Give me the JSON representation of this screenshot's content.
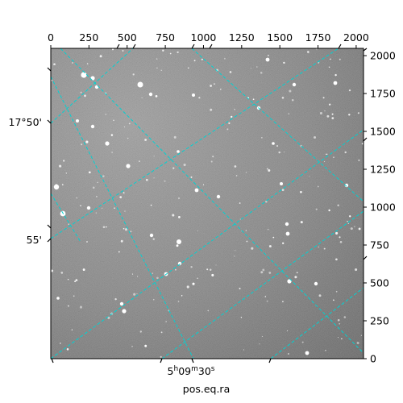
{
  "chart_data": {
    "type": "image",
    "xlabel": "pos.eq.ra",
    "ylabel": "",
    "title": "",
    "xlim": [
      0,
      2048
    ],
    "ylim": [
      0,
      2048
    ],
    "x_ticks": [
      0,
      250,
      500,
      750,
      1000,
      1250,
      1500,
      1750,
      2000
    ],
    "y_ticks": [
      0,
      250,
      500,
      750,
      1000,
      1250,
      1500,
      1750,
      2000
    ],
    "wcs_dec_labels": [
      "17°50'",
      "55'"
    ],
    "wcs_ra_label": {
      "h": "5",
      "h_unit": "h",
      "m": "09",
      "m_unit": "m",
      "s": "30",
      "s_unit": "s"
    },
    "grid": true,
    "grid_color": "#00d2d2",
    "grid_style": "dashed",
    "colormap": "gray"
  }
}
